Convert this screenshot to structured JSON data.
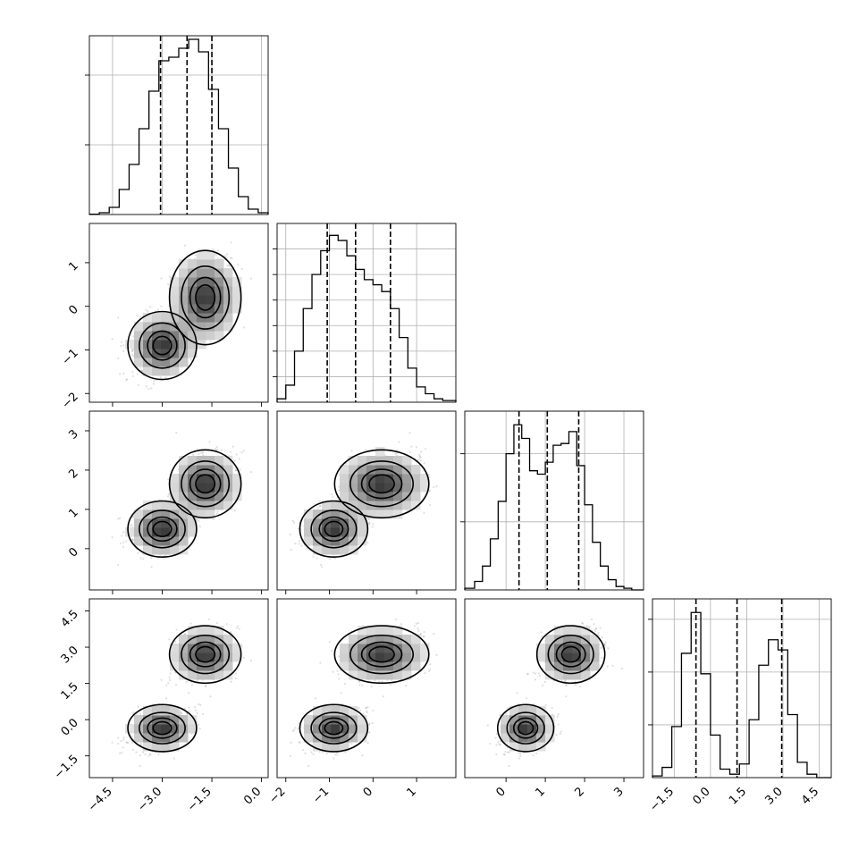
{
  "figure": {
    "name": "corner plot",
    "background": "#ffffff",
    "line_color": "#000000",
    "grid_color": "#b0b0b0"
  },
  "chart_data": {
    "type": "corner",
    "parameters": [
      {
        "id": "p0",
        "range": [
          -5.2,
          0.2
        ],
        "ticks": [
          -4.5,
          -3.0,
          -1.5,
          0.0
        ],
        "tick_labels": [
          "−4.5",
          "−3.0",
          "−1.5",
          "0.0"
        ],
        "quantiles": [
          -3.05,
          -2.25,
          -1.5
        ],
        "hist_x": [
          -5.2,
          -4.9,
          -4.6,
          -4.3,
          -4.0,
          -3.7,
          -3.4,
          -3.1,
          -2.8,
          -2.5,
          -2.2,
          -1.9,
          -1.6,
          -1.3,
          -1.0,
          -0.7,
          -0.4,
          -0.1,
          0.2
        ],
        "hist_counts": [
          0.002,
          0.01,
          0.04,
          0.14,
          0.28,
          0.48,
          0.69,
          0.86,
          0.88,
          0.93,
          0.98,
          0.91,
          0.7,
          0.48,
          0.26,
          0.1,
          0.03,
          0.01
        ]
      },
      {
        "id": "p1",
        "range": [
          -2.2,
          1.9
        ],
        "ticks": [
          -2,
          -1,
          0,
          1
        ],
        "tick_labels": [
          "−2",
          "−1",
          "0",
          "1"
        ],
        "quantiles": [
          -1.05,
          -0.4,
          0.4
        ],
        "hist_x": [
          -2.2,
          -2.0,
          -1.8,
          -1.6,
          -1.4,
          -1.2,
          -1.0,
          -0.8,
          -0.6,
          -0.4,
          -0.2,
          0.0,
          0.2,
          0.4,
          0.6,
          0.8,
          1.0,
          1.2,
          1.4,
          1.6,
          1.9
        ],
        "hist_counts": [
          0.02,
          0.1,
          0.3,
          0.55,
          0.75,
          0.89,
          0.98,
          0.95,
          0.86,
          0.78,
          0.72,
          0.69,
          0.65,
          0.55,
          0.38,
          0.2,
          0.09,
          0.05,
          0.02,
          0.01
        ]
      },
      {
        "id": "p2",
        "range": [
          -1.05,
          3.5
        ],
        "ticks": [
          0,
          1,
          2,
          3
        ],
        "tick_labels": [
          "0",
          "1",
          "2",
          "3"
        ],
        "quantiles": [
          0.33,
          1.05,
          1.85
        ],
        "hist_x": [
          -1.05,
          -0.8,
          -0.6,
          -0.4,
          -0.2,
          0.0,
          0.2,
          0.4,
          0.6,
          0.8,
          1.0,
          1.2,
          1.4,
          1.6,
          1.8,
          2.0,
          2.2,
          2.4,
          2.6,
          2.8,
          3.0,
          3.2,
          3.5
        ],
        "hist_counts": [
          0.01,
          0.05,
          0.14,
          0.3,
          0.52,
          0.8,
          0.97,
          0.89,
          0.7,
          0.68,
          0.75,
          0.85,
          0.86,
          0.93,
          0.73,
          0.5,
          0.28,
          0.14,
          0.06,
          0.02,
          0.01,
          0.0
        ]
      },
      {
        "id": "p3",
        "range": [
          -2.4,
          5.0
        ],
        "ticks": [
          -1.5,
          0.0,
          1.5,
          3.0,
          4.5
        ],
        "tick_labels": [
          "−1.5",
          "0.0",
          "1.5",
          "3.0",
          "4.5"
        ],
        "quantiles": [
          -0.6,
          1.1,
          2.95
        ],
        "hist_x": [
          -2.4,
          -2.0,
          -1.6,
          -1.2,
          -0.8,
          -0.4,
          0.0,
          0.4,
          0.8,
          1.2,
          1.6,
          2.0,
          2.4,
          2.8,
          3.2,
          3.6,
          4.0,
          4.4,
          5.0
        ],
        "hist_counts": [
          0.01,
          0.06,
          0.3,
          0.73,
          0.97,
          0.61,
          0.25,
          0.05,
          0.02,
          0.08,
          0.34,
          0.66,
          0.81,
          0.75,
          0.37,
          0.09,
          0.02,
          0.0
        ]
      }
    ],
    "hist_labels_y": {
      "p0": {
        "ticks": [
          0.0,
          0.39,
          0.78
        ],
        "tick_labels": [
          "",
          "",
          ""
        ],
        "ylim": [
          0,
          1.0
        ]
      },
      "p1": {
        "ticks": [
          0.0,
          0.15,
          0.3,
          0.45,
          0.6,
          0.75,
          0.9
        ],
        "tick_labels": [
          "",
          "",
          "",
          "",
          "",
          "",
          ""
        ],
        "ylim": [
          0,
          1.05
        ]
      },
      "p2": {
        "ticks": [
          0.0,
          0.4,
          0.8
        ],
        "tick_labels": [
          "",
          "",
          ""
        ],
        "ylim": [
          0,
          1.05
        ]
      },
      "p3": {
        "ticks": [
          0.0,
          0.31,
          0.62,
          0.93
        ],
        "tick_labels": [
          "",
          "",
          "",
          ""
        ],
        "ylim": [
          0,
          1.05
        ]
      }
    },
    "pair_ylabels": {
      "p1": {
        "ticks": [
          -2,
          -1,
          0,
          1
        ],
        "tick_labels": [
          "−2",
          "−1",
          "0",
          "1"
        ]
      },
      "p2": {
        "ticks": [
          0,
          1,
          2,
          3
        ],
        "tick_labels": [
          "0",
          "1",
          "2",
          "3"
        ]
      },
      "p3": {
        "ticks": [
          -1.5,
          0.0,
          1.5,
          3.0,
          4.5
        ],
        "tick_labels": [
          "−1.5",
          "0.0",
          "1.5",
          "3.0",
          "4.5"
        ]
      }
    },
    "clusters": [
      {
        "center": [
          -3.0,
          -0.9,
          0.5,
          -0.35
        ],
        "sd": [
          0.48,
          0.36,
          0.33,
          0.45
        ]
      },
      {
        "center": [
          -1.7,
          0.2,
          1.65,
          2.7
        ],
        "sd": [
          0.5,
          0.5,
          0.4,
          0.55
        ]
      }
    ],
    "contour_levels": [
      0.12,
      0.39,
      0.68,
      0.86
    ],
    "samples_per_cluster": 900,
    "grid": true
  }
}
